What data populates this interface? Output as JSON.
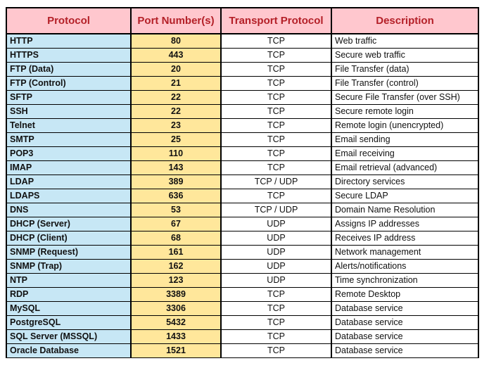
{
  "table": {
    "headers": [
      "Protocol",
      "Port Number(s)",
      "Transport Protocol",
      "Description"
    ],
    "rows": [
      {
        "protocol": "HTTP",
        "port": "80",
        "transport": "TCP",
        "description": "Web traffic"
      },
      {
        "protocol": "HTTPS",
        "port": "443",
        "transport": "TCP",
        "description": "Secure web traffic"
      },
      {
        "protocol": "FTP (Data)",
        "port": "20",
        "transport": "TCP",
        "description": "File Transfer (data)"
      },
      {
        "protocol": "FTP (Control)",
        "port": "21",
        "transport": "TCP",
        "description": "File Transfer (control)"
      },
      {
        "protocol": "SFTP",
        "port": "22",
        "transport": "TCP",
        "description": "Secure File Transfer (over SSH)"
      },
      {
        "protocol": "SSH",
        "port": "22",
        "transport": "TCP",
        "description": "Secure remote login"
      },
      {
        "protocol": "Telnet",
        "port": "23",
        "transport": "TCP",
        "description": "Remote login (unencrypted)"
      },
      {
        "protocol": "SMTP",
        "port": "25",
        "transport": "TCP",
        "description": "Email sending"
      },
      {
        "protocol": "POP3",
        "port": "110",
        "transport": "TCP",
        "description": "Email receiving"
      },
      {
        "protocol": "IMAP",
        "port": "143",
        "transport": "TCP",
        "description": "Email retrieval (advanced)"
      },
      {
        "protocol": "LDAP",
        "port": "389",
        "transport": "TCP / UDP",
        "description": "Directory services"
      },
      {
        "protocol": "LDAPS",
        "port": "636",
        "transport": "TCP",
        "description": "Secure LDAP"
      },
      {
        "protocol": "DNS",
        "port": "53",
        "transport": "TCP / UDP",
        "description": "Domain Name Resolution"
      },
      {
        "protocol": "DHCP (Server)",
        "port": "67",
        "transport": "UDP",
        "description": "Assigns IP addresses"
      },
      {
        "protocol": "DHCP (Client)",
        "port": "68",
        "transport": "UDP",
        "description": "Receives IP address"
      },
      {
        "protocol": "SNMP (Request)",
        "port": "161",
        "transport": "UDP",
        "description": "Network management"
      },
      {
        "protocol": "SNMP (Trap)",
        "port": "162",
        "transport": "UDP",
        "description": "Alerts/notifications"
      },
      {
        "protocol": "NTP",
        "port": "123",
        "transport": "UDP",
        "description": "Time synchronization"
      },
      {
        "protocol": "RDP",
        "port": "3389",
        "transport": "TCP",
        "description": "Remote Desktop"
      },
      {
        "protocol": "MySQL",
        "port": "3306",
        "transport": "TCP",
        "description": "Database service"
      },
      {
        "protocol": "PostgreSQL",
        "port": "5432",
        "transport": "TCP",
        "description": "Database service"
      },
      {
        "protocol": "SQL Server (MSSQL)",
        "port": "1433",
        "transport": "TCP",
        "description": "Database service"
      },
      {
        "protocol": "Oracle Database",
        "port": "1521",
        "transport": "TCP",
        "description": "Database service"
      }
    ],
    "colors": {
      "header_bg": "#ffc7ce",
      "header_text": "#b42028",
      "protocol_bg": "#c7e7f5",
      "port_bg": "#ffe79b",
      "port_text": "#a56e1e",
      "border": "#000000"
    }
  }
}
